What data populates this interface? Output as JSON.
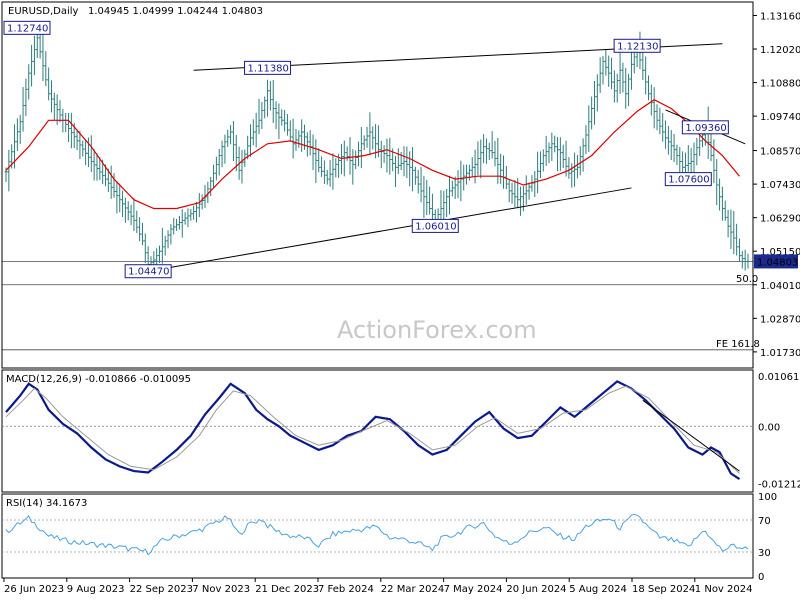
{
  "header": {
    "symbol": "EURUSD,Daily",
    "ohlc": "1.04945 1.04999 1.04244 1.04803"
  },
  "watermark": "ActionForex.com",
  "colors": {
    "bar": "#2e7d7d",
    "ma": "#dd0000",
    "macd": "#0a1a8c",
    "signal": "#999999",
    "rsi": "#4aa3e0",
    "label_fg": "#1a1a8c",
    "price_tag_bg": "#1a2a8c"
  },
  "chart_data": [
    {
      "type": "ohlc",
      "name": "price",
      "ylim": [
        1.0125,
        1.1355
      ],
      "y_ticks": [
        "1.13160",
        "1.12020",
        "1.10880",
        "1.09740",
        "1.08570",
        "1.07430",
        "1.06290",
        "1.05150",
        "1.04010",
        "1.02870",
        "1.01730"
      ],
      "last_price_label": "1.04803",
      "x_ticks": [
        "26 Jun 2023",
        "9 Aug 2023",
        "22 Sep 2023",
        "7 Nov 2023",
        "21 Dec 2023",
        "7 Feb 2024",
        "22 Mar 2024",
        "7 May 2024",
        "20 Jun 2024",
        "5 Aug 2024",
        "18 Sep 2024",
        "1 Nov 2024"
      ],
      "close_path": [
        [
          0,
          1.0785
        ],
        [
          5,
          1.0955
        ],
        [
          8,
          1.112
        ],
        [
          11,
          1.124
        ],
        [
          15,
          1.105
        ],
        [
          20,
          1.096
        ],
        [
          25,
          1.089
        ],
        [
          30,
          1.082
        ],
        [
          35,
          1.076
        ],
        [
          40,
          1.069
        ],
        [
          45,
          1.062
        ],
        [
          48,
          1.055
        ],
        [
          50,
          1.047
        ],
        [
          52,
          1.0485
        ],
        [
          55,
          1.053
        ],
        [
          58,
          1.059
        ],
        [
          62,
          1.062
        ],
        [
          66,
          1.065
        ],
        [
          70,
          1.07
        ],
        [
          73,
          1.078
        ],
        [
          76,
          1.087
        ],
        [
          79,
          1.092
        ],
        [
          82,
          1.079
        ],
        [
          86,
          1.09
        ],
        [
          89,
          1.096
        ],
        [
          92,
          1.106
        ],
        [
          94,
          1.1
        ],
        [
          96,
          1.097
        ],
        [
          98,
          1.095
        ],
        [
          101,
          1.088
        ],
        [
          104,
          1.092
        ],
        [
          107,
          1.087
        ],
        [
          110,
          1.08
        ],
        [
          113,
          1.076
        ],
        [
          116,
          1.081
        ],
        [
          119,
          1.085
        ],
        [
          122,
          1.081
        ],
        [
          125,
          1.088
        ],
        [
          128,
          1.092
        ],
        [
          131,
          1.086
        ],
        [
          134,
          1.084
        ],
        [
          137,
          1.08
        ],
        [
          140,
          1.082
        ],
        [
          143,
          1.079
        ],
        [
          146,
          1.072
        ],
        [
          149,
          1.066
        ],
        [
          151,
          1.062
        ],
        [
          153,
          1.066
        ],
        [
          156,
          1.072
        ],
        [
          159,
          1.075
        ],
        [
          162,
          1.078
        ],
        [
          165,
          1.081
        ],
        [
          168,
          1.087
        ],
        [
          171,
          1.085
        ],
        [
          174,
          1.079
        ],
        [
          177,
          1.072
        ],
        [
          180,
          1.069
        ],
        [
          183,
          1.072
        ],
        [
          186,
          1.076
        ],
        [
          189,
          1.084
        ],
        [
          192,
          1.088
        ],
        [
          195,
          1.085
        ],
        [
          198,
          1.078
        ],
        [
          201,
          1.08
        ],
        [
          204,
          1.091
        ],
        [
          206,
          1.1
        ],
        [
          208,
          1.108
        ],
        [
          210,
          1.116
        ],
        [
          212,
          1.112
        ],
        [
          214,
          1.106
        ],
        [
          216,
          1.113
        ],
        [
          218,
          1.105
        ],
        [
          220,
          1.115
        ],
        [
          222,
          1.12
        ],
        [
          224,
          1.113
        ],
        [
          226,
          1.105
        ],
        [
          229,
          1.096
        ],
        [
          232,
          1.09
        ],
        [
          235,
          1.086
        ],
        [
          238,
          1.08
        ],
        [
          241,
          1.082
        ],
        [
          244,
          1.089
        ],
        [
          246,
          1.093
        ],
        [
          248,
          1.084
        ],
        [
          250,
          1.074
        ],
        [
          252,
          1.066
        ],
        [
          254,
          1.06
        ],
        [
          256,
          1.056
        ],
        [
          258,
          1.05
        ],
        [
          260,
          1.048
        ]
      ],
      "moving_average": [
        [
          0,
          1.079
        ],
        [
          8,
          1.087
        ],
        [
          15,
          1.096
        ],
        [
          22,
          1.096
        ],
        [
          30,
          1.087
        ],
        [
          38,
          1.076
        ],
        [
          45,
          1.069
        ],
        [
          52,
          1.066
        ],
        [
          60,
          1.066
        ],
        [
          68,
          1.068
        ],
        [
          76,
          1.076
        ],
        [
          84,
          1.083
        ],
        [
          92,
          1.088
        ],
        [
          100,
          1.089
        ],
        [
          110,
          1.086
        ],
        [
          118,
          1.083
        ],
        [
          126,
          1.084
        ],
        [
          134,
          1.086
        ],
        [
          142,
          1.083
        ],
        [
          150,
          1.079
        ],
        [
          158,
          1.076
        ],
        [
          166,
          1.077
        ],
        [
          174,
          1.077
        ],
        [
          182,
          1.074
        ],
        [
          190,
          1.076
        ],
        [
          198,
          1.079
        ],
        [
          206,
          1.084
        ],
        [
          214,
          1.092
        ],
        [
          222,
          1.099
        ],
        [
          228,
          1.103
        ],
        [
          234,
          1.1
        ],
        [
          240,
          1.095
        ],
        [
          246,
          1.089
        ],
        [
          252,
          1.084
        ],
        [
          258,
          1.077
        ]
      ],
      "annotations": [
        {
          "label": "1.12740",
          "value": 1.1274,
          "i": 5
        },
        {
          "label": "1.11380",
          "value": 1.1138,
          "i": 92
        },
        {
          "label": "1.04470",
          "value": 1.0447,
          "i": 50
        },
        {
          "label": "1.06010",
          "value": 1.0601,
          "i": 151
        },
        {
          "label": "1.12130",
          "value": 1.1213,
          "i": 222
        },
        {
          "label": "1.09360",
          "value": 1.0936,
          "i": 246
        },
        {
          "label": "1.07600",
          "value": 1.076,
          "i": 240
        }
      ],
      "trendlines": [
        {
          "from": [
            66,
            1.113
          ],
          "to": [
            252,
            1.122
          ]
        },
        {
          "from": [
            50,
            1.0447
          ],
          "to": [
            220,
            1.073
          ]
        },
        {
          "from": [
            232,
            1.0995
          ],
          "to": [
            260,
            1.088
          ]
        }
      ],
      "hlines": [
        {
          "value": 1.0401,
          "label": "50.0"
        },
        {
          "value": 1.018,
          "label": "FE 161.8"
        },
        {
          "value": 1.048,
          "label": ""
        }
      ]
    },
    {
      "type": "line",
      "name": "macd",
      "title": "MACD(12,26,9) -0.010866 -0.010095",
      "ylim": [
        -0.0135,
        0.0115
      ],
      "y_ticks": [
        "0.010618",
        "0.00",
        "-0.01212"
      ],
      "series": [
        {
          "role": "macd",
          "values": [
            [
              0,
              0.003
            ],
            [
              5,
              0.0065
            ],
            [
              8,
              0.009
            ],
            [
              11,
              0.0078
            ],
            [
              15,
              0.0035
            ],
            [
              20,
              0.0005
            ],
            [
              25,
              -0.0015
            ],
            [
              30,
              -0.0045
            ],
            [
              35,
              -0.007
            ],
            [
              40,
              -0.0085
            ],
            [
              45,
              -0.0095
            ],
            [
              50,
              -0.0098
            ],
            [
              55,
              -0.0075
            ],
            [
              60,
              -0.005
            ],
            [
              65,
              -0.002
            ],
            [
              70,
              0.0025
            ],
            [
              75,
              0.006
            ],
            [
              79,
              0.009
            ],
            [
              84,
              0.007
            ],
            [
              88,
              0.0035
            ],
            [
              92,
              0.0015
            ],
            [
              96,
              0.0
            ],
            [
              100,
              -0.002
            ],
            [
              105,
              -0.0035
            ],
            [
              110,
              -0.005
            ],
            [
              115,
              -0.004
            ],
            [
              120,
              -0.002
            ],
            [
              125,
              -0.001
            ],
            [
              130,
              0.002
            ],
            [
              135,
              0.0015
            ],
            [
              140,
              -0.001
            ],
            [
              145,
              -0.004
            ],
            [
              150,
              -0.006
            ],
            [
              155,
              -0.005
            ],
            [
              160,
              -0.002
            ],
            [
              165,
              0.001
            ],
            [
              170,
              0.003
            ],
            [
              175,
              -0.0005
            ],
            [
              180,
              -0.0025
            ],
            [
              185,
              -0.002
            ],
            [
              190,
              0.001
            ],
            [
              195,
              0.004
            ],
            [
              200,
              0.002
            ],
            [
              205,
              0.0045
            ],
            [
              210,
              0.007
            ],
            [
              215,
              0.0095
            ],
            [
              220,
              0.008
            ],
            [
              225,
              0.0055
            ],
            [
              230,
              0.0025
            ],
            [
              235,
              -0.0005
            ],
            [
              240,
              -0.0045
            ],
            [
              245,
              -0.006
            ],
            [
              248,
              -0.0045
            ],
            [
              251,
              -0.0055
            ],
            [
              255,
              -0.01
            ],
            [
              258,
              -0.0112
            ]
          ]
        },
        {
          "role": "signal",
          "values": [
            [
              0,
              0.002
            ],
            [
              6,
              0.0055
            ],
            [
              10,
              0.008
            ],
            [
              14,
              0.006
            ],
            [
              20,
              0.002
            ],
            [
              28,
              -0.002
            ],
            [
              36,
              -0.006
            ],
            [
              44,
              -0.0085
            ],
            [
              52,
              -0.0092
            ],
            [
              60,
              -0.0065
            ],
            [
              68,
              -0.002
            ],
            [
              74,
              0.0035
            ],
            [
              80,
              0.0075
            ],
            [
              86,
              0.0065
            ],
            [
              94,
              0.002
            ],
            [
              102,
              -0.002
            ],
            [
              110,
              -0.004
            ],
            [
              118,
              -0.003
            ],
            [
              126,
              -0.0008
            ],
            [
              134,
              0.0012
            ],
            [
              142,
              -0.0015
            ],
            [
              150,
              -0.005
            ],
            [
              158,
              -0.004
            ],
            [
              166,
              0.0
            ],
            [
              172,
              0.0018
            ],
            [
              180,
              -0.0015
            ],
            [
              188,
              -0.0005
            ],
            [
              196,
              0.0028
            ],
            [
              204,
              0.0035
            ],
            [
              212,
              0.007
            ],
            [
              218,
              0.0085
            ],
            [
              226,
              0.006
            ],
            [
              234,
              0.001
            ],
            [
              242,
              -0.004
            ],
            [
              250,
              -0.0055
            ],
            [
              258,
              -0.01
            ]
          ]
        }
      ],
      "trendline": {
        "from": [
          224,
          0.0055
        ],
        "to": [
          258,
          -0.0095
        ]
      }
    },
    {
      "type": "line",
      "name": "rsi",
      "title": "RSI(14) 34.1673",
      "ylim": [
        0,
        100
      ],
      "y_ticks": [
        "100",
        "70",
        "30",
        "0"
      ],
      "values": [
        [
          0,
          55
        ],
        [
          4,
          64
        ],
        [
          8,
          72
        ],
        [
          11,
          63
        ],
        [
          15,
          50
        ],
        [
          20,
          45
        ],
        [
          25,
          42
        ],
        [
          30,
          40
        ],
        [
          35,
          38
        ],
        [
          40,
          36
        ],
        [
          45,
          33
        ],
        [
          50,
          30
        ],
        [
          55,
          44
        ],
        [
          60,
          50
        ],
        [
          65,
          54
        ],
        [
          70,
          60
        ],
        [
          74,
          68
        ],
        [
          78,
          73
        ],
        [
          82,
          52
        ],
        [
          86,
          66
        ],
        [
          90,
          71
        ],
        [
          92,
          63
        ],
        [
          96,
          55
        ],
        [
          100,
          50
        ],
        [
          105,
          48
        ],
        [
          110,
          38
        ],
        [
          115,
          52
        ],
        [
          120,
          56
        ],
        [
          125,
          58
        ],
        [
          130,
          62
        ],
        [
          135,
          48
        ],
        [
          140,
          46
        ],
        [
          145,
          41
        ],
        [
          150,
          33
        ],
        [
          153,
          46
        ],
        [
          158,
          52
        ],
        [
          163,
          61
        ],
        [
          168,
          66
        ],
        [
          172,
          50
        ],
        [
          177,
          40
        ],
        [
          180,
          45
        ],
        [
          185,
          56
        ],
        [
          190,
          60
        ],
        [
          195,
          50
        ],
        [
          200,
          46
        ],
        [
          204,
          62
        ],
        [
          208,
          68
        ],
        [
          212,
          72
        ],
        [
          216,
          60
        ],
        [
          220,
          73
        ],
        [
          222,
          77
        ],
        [
          226,
          60
        ],
        [
          230,
          48
        ],
        [
          235,
          44
        ],
        [
          240,
          36
        ],
        [
          244,
          52
        ],
        [
          246,
          58
        ],
        [
          248,
          46
        ],
        [
          252,
          32
        ],
        [
          256,
          38
        ],
        [
          260,
          34
        ]
      ]
    }
  ]
}
